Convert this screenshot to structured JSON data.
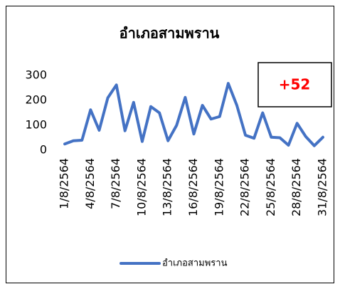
{
  "chart_data": {
    "type": "line",
    "title": "อำเภอสามพราน",
    "categories": [
      "1/8/2564",
      null,
      null,
      "4/8/2564",
      null,
      null,
      "7/8/2564",
      null,
      null,
      "10/8/2564",
      null,
      null,
      "13/8/2564",
      null,
      null,
      "16/8/2564",
      null,
      null,
      "19/8/2564",
      null,
      null,
      "22/8/2564",
      null,
      null,
      "25/8/2564",
      null,
      null,
      "28/8/2564",
      null,
      null,
      "31/8/2564"
    ],
    "series": [
      {
        "name": "อำเภอสามพราน",
        "color": "#4472c4",
        "values": [
          25,
          38,
          40,
          162,
          80,
          210,
          262,
          78,
          192,
          35,
          175,
          150,
          38,
          100,
          212,
          65,
          180,
          125,
          135,
          268,
          180,
          60,
          48,
          150,
          52,
          50,
          20,
          108,
          55,
          18,
          52
        ]
      }
    ],
    "ylim": [
      0,
      300
    ],
    "yticks": [
      0,
      100,
      200,
      300
    ],
    "grid": false,
    "annotation": "+52",
    "legend": "bottom"
  }
}
